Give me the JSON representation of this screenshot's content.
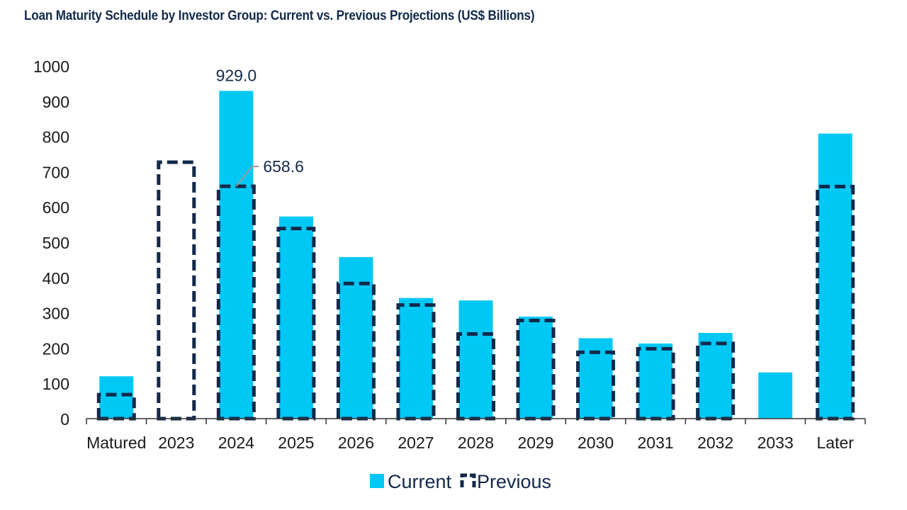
{
  "title": "Loan Maturity Schedule by Investor Group: Current vs. Previous Projections (US$ Billions)",
  "colors": {
    "current": "#00c8f5",
    "previous": "#13294b",
    "axis": "#333333",
    "text": "#13294b"
  },
  "chart_data": {
    "type": "bar",
    "title": "Loan Maturity Schedule by Investor Group: Current vs. Previous Projections (US$ Billions)",
    "xlabel": "",
    "ylabel": "",
    "ylim": [
      0,
      1000
    ],
    "yticks": [
      "0",
      "100",
      "200",
      "300",
      "400",
      "500",
      "600",
      "700",
      "800",
      "900",
      "1000"
    ],
    "grid": false,
    "legend_position": "bottom",
    "categories": [
      "Matured",
      "2023",
      "2024",
      "2025",
      "2026",
      "2027",
      "2028",
      "2029",
      "2030",
      "2031",
      "2032",
      "2033",
      "Later"
    ],
    "series": [
      {
        "name": "Current",
        "style": "filled",
        "values": [
          120,
          0,
          929.0,
          573,
          458,
          342,
          335,
          289,
          228,
          213,
          243,
          131,
          808
        ]
      },
      {
        "name": "Previous",
        "style": "dashed-outline",
        "values": [
          68,
          727,
          658.6,
          539,
          383,
          322,
          240,
          278,
          188,
          198,
          213,
          0,
          658
        ]
      }
    ],
    "annotations": [
      {
        "text": "929.0",
        "category": "2024",
        "series": "Current"
      },
      {
        "text": "658.6",
        "category": "2024",
        "series": "Previous"
      }
    ]
  }
}
